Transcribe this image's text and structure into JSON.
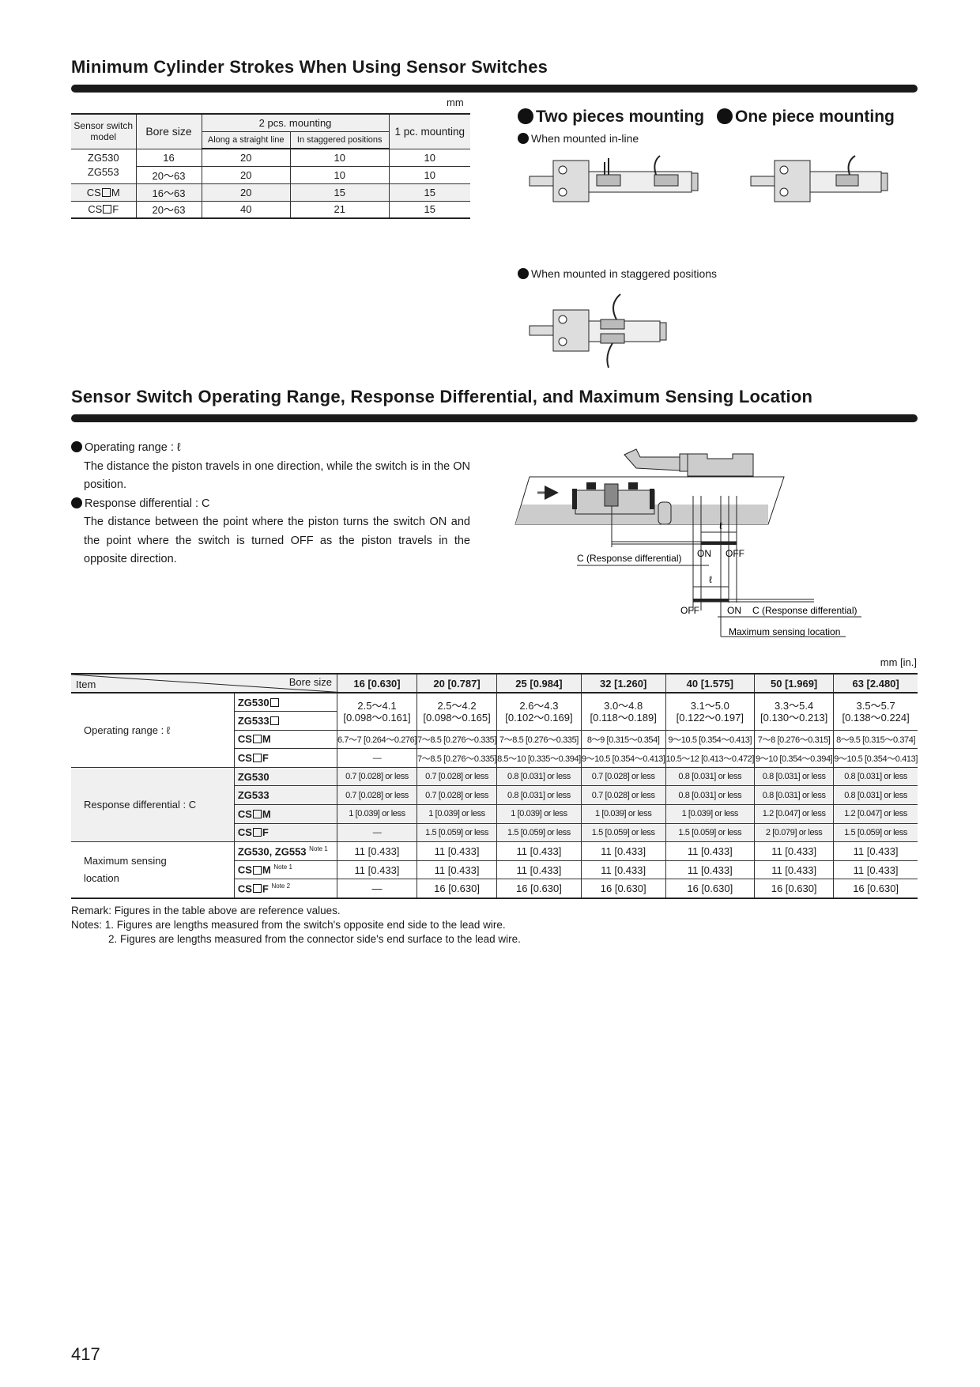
{
  "section1": {
    "title": "Minimum Cylinder Strokes When Using Sensor Switches",
    "unit": "mm",
    "table": {
      "headers": {
        "sensor_model": "Sensor switch model",
        "bore_size": "Bore size",
        "two_pcs": "2 pcs. mounting",
        "straight": "Along a straight line",
        "staggered": "In staggered positions",
        "one_pc": "1 pc. mounting"
      },
      "rows": [
        {
          "model": "ZG530",
          "bore": "16",
          "straight": "20",
          "staggered": "10",
          "one": "10"
        },
        {
          "model": "ZG553",
          "bore": "20～63",
          "straight": "20",
          "staggered": "10",
          "one": "10"
        },
        {
          "model_prefix": "CS",
          "model_suffix": "M",
          "bore": "16～63",
          "straight": "20",
          "staggered": "15",
          "one": "15"
        },
        {
          "model_prefix": "CS",
          "model_suffix": "F",
          "bore": "20～63",
          "straight": "40",
          "staggered": "21",
          "one": "15"
        }
      ]
    },
    "two_pieces_label": "Two pieces mounting",
    "one_piece_label": "One piece mounting",
    "inline_label": "When mounted in-line",
    "staggered_label": "When mounted in staggered positions"
  },
  "section2": {
    "title": "Sensor Switch Operating Range, Response Differential, and Maximum Sensing Location",
    "op_range_heading": "Operating range : ℓ",
    "op_range_text": "The distance the piston travels in one direction, while the switch is in the ON position.",
    "resp_diff_heading": "Response differential : C",
    "resp_diff_text": "The distance between the point where the piston turns the switch ON and the point where the switch is turned OFF as the piston travels in the opposite direction.",
    "diagram": {
      "ell": "ℓ",
      "on": "ON",
      "off": "OFF",
      "c_label": "C (Response differential)",
      "max_sensing": "Maximum sensing location"
    },
    "unit": "mm [in.]",
    "table": {
      "item": "Item",
      "bore_size": "Bore size",
      "bores": [
        "16 [0.630]",
        "20 [0.787]",
        "25 [0.984]",
        "32 [1.260]",
        "40 [1.575]",
        "50 [1.969]",
        "63 [2.480]"
      ],
      "op_range_label": "Operating range :  ℓ",
      "op_zg_models": [
        "ZG530",
        "ZG533"
      ],
      "op_zg_values": [
        [
          "2.5～4.1",
          "[0.098～0.161]"
        ],
        [
          "2.5～4.2",
          "[0.098～0.165]"
        ],
        [
          "2.6～4.3",
          "[0.102～0.169]"
        ],
        [
          "3.0～4.8",
          "[0.118～0.189]"
        ],
        [
          "3.1～5.0",
          "[0.122～0.197]"
        ],
        [
          "3.3～5.4",
          "[0.130～0.213]"
        ],
        [
          "3.5～5.7",
          "[0.138～0.224]"
        ]
      ],
      "op_csm": [
        "6.7～7 [0.264～0.276]",
        "7～8.5 [0.276～0.335]",
        "7～8.5 [0.276～0.335]",
        "8～9 [0.315～0.354]",
        "9～10.5 [0.354～0.413]",
        "7～8 [0.276～0.315]",
        "8～9.5 [0.315～0.374]"
      ],
      "op_csf": [
        "—",
        "7～8.5 [0.276～0.335]",
        "8.5～10 [0.335～0.394]",
        "9～10.5 [0.354～0.413]",
        "10.5～12 [0.413～0.472]",
        "9～10 [0.354～0.394]",
        "9～10.5 [0.354～0.413]"
      ],
      "resp_label": "Response differential : C",
      "resp_models": [
        "ZG530",
        "ZG533"
      ],
      "resp_zg530": [
        "0.7 [0.028] or less",
        "0.7 [0.028] or less",
        "0.8 [0.031] or less",
        "0.7 [0.028] or less",
        "0.8 [0.031] or less",
        "0.8 [0.031] or less",
        "0.8 [0.031] or less"
      ],
      "resp_zg533": [
        "0.7 [0.028] or less",
        "0.7 [0.028] or less",
        "0.8 [0.031] or less",
        "0.7 [0.028] or less",
        "0.8 [0.031] or less",
        "0.8 [0.031] or less",
        "0.8 [0.031] or less"
      ],
      "resp_csm": [
        "1 [0.039] or less",
        "1 [0.039] or less",
        "1 [0.039] or less",
        "1 [0.039] or less",
        "1 [0.039] or less",
        "1.2 [0.047] or less",
        "1.2 [0.047] or less"
      ],
      "resp_csf": [
        "—",
        "1.5 [0.059] or less",
        "1.5 [0.059] or less",
        "1.5 [0.059] or less",
        "1.5 [0.059] or less",
        "2 [0.079] or less",
        "1.5 [0.059] or less"
      ],
      "max_label_1": "Maximum sensing",
      "max_label_2": "location",
      "max_zg_model": "ZG530, ZG553",
      "note1": "Note 1",
      "note2": "Note 2",
      "max_zg": [
        "11 [0.433]",
        "11 [0.433]",
        "11 [0.433]",
        "11 [0.433]",
        "11 [0.433]",
        "11 [0.433]",
        "11 [0.433]"
      ],
      "max_csm": [
        "11 [0.433]",
        "11 [0.433]",
        "11 [0.433]",
        "11 [0.433]",
        "11 [0.433]",
        "11 [0.433]",
        "11 [0.433]"
      ],
      "max_csf": [
        "—",
        "16 [0.630]",
        "16 [0.630]",
        "16 [0.630]",
        "16 [0.630]",
        "16 [0.630]",
        "16 [0.630]"
      ],
      "cs": "CS",
      "m": "M",
      "f": "F"
    },
    "remark": "Remark: Figures in the table above are reference values.",
    "notes": [
      "Notes: 1. Figures are lengths measured from the switch's opposite end side to the lead wire.",
      "2. Figures are lengths measured from the connector side's end surface to the lead wire."
    ]
  },
  "page_number": "417"
}
